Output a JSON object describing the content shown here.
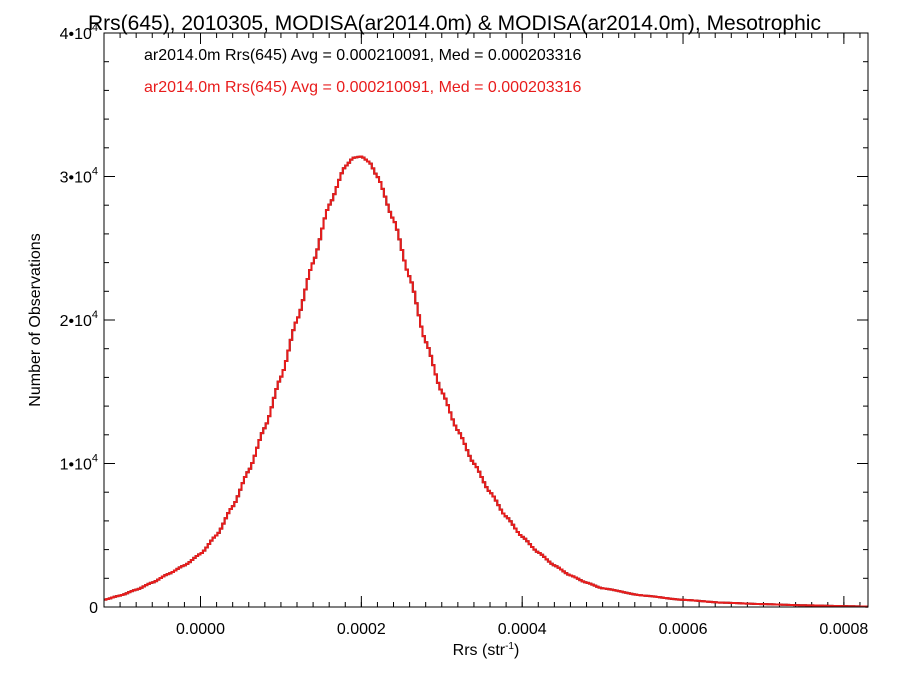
{
  "chart_data": {
    "type": "histogram",
    "title": "Rrs(645), 2010305, MODISA(ar2014.0m) & MODISA(ar2014.0m), Mesotrophic",
    "xlabel": "Rrs (str",
    "xlabel_sup": "-1",
    "xlabel_end": ")",
    "ylabel": "Number of Observations",
    "xlim": [
      -0.00012,
      0.00083
    ],
    "ylim": [
      0,
      40000
    ],
    "x_ticks": [
      0.0,
      0.0002,
      0.0004,
      0.0006,
      0.0008
    ],
    "x_tick_labels": [
      "0.0000",
      "0.0002",
      "0.0004",
      "0.0006",
      "0.0008"
    ],
    "y_ticks": [
      0,
      10000,
      20000,
      30000,
      40000
    ],
    "y_tick_labels": [
      {
        "base": "0",
        "exp": ""
      },
      {
        "base": "1•10",
        "exp": "4"
      },
      {
        "base": "2•10",
        "exp": "4"
      },
      {
        "base": "3•10",
        "exp": "4"
      },
      {
        "base": "4•10",
        "exp": "4"
      }
    ],
    "x_minor_step": 2e-05,
    "y_minor_step": 2000,
    "grid": false,
    "legend_position": "top-left",
    "series": [
      {
        "name": "ar2014.0m Rrs(645) Avg = 0.000210091, Med = 0.000203316",
        "color": "#000000",
        "x": [
          -0.00012,
          -0.0001,
          -8e-05,
          -6e-05,
          -4e-05,
          -2e-05,
          0.0,
          2e-05,
          4e-05,
          6e-05,
          8e-05,
          0.0001,
          0.00012,
          0.00014,
          0.00016,
          0.00018,
          0.00019,
          0.0002,
          0.00021,
          0.00022,
          0.00024,
          0.00026,
          0.00028,
          0.0003,
          0.00032,
          0.00034,
          0.00036,
          0.00038,
          0.0004,
          0.00042,
          0.00044,
          0.00046,
          0.00048,
          0.0005,
          0.00055,
          0.0006,
          0.00065,
          0.0007,
          0.00075,
          0.0008,
          0.00083
        ],
        "y": [
          500,
          800,
          1200,
          1700,
          2300,
          2900,
          3700,
          5000,
          7000,
          9500,
          12500,
          16000,
          20000,
          24000,
          28000,
          30700,
          31300,
          31400,
          31000,
          30000,
          27000,
          23000,
          18500,
          15000,
          12300,
          10000,
          8000,
          6300,
          4900,
          3800,
          2900,
          2200,
          1700,
          1300,
          800,
          500,
          300,
          200,
          120,
          60,
          30
        ]
      },
      {
        "name": "ar2014.0m Rrs(645) Avg = 0.000210091, Med = 0.000203316",
        "color": "#e81c1c",
        "x": [
          -0.00012,
          -0.0001,
          -8e-05,
          -6e-05,
          -4e-05,
          -2e-05,
          0.0,
          2e-05,
          4e-05,
          6e-05,
          8e-05,
          0.0001,
          0.00012,
          0.00014,
          0.00016,
          0.00018,
          0.00019,
          0.0002,
          0.00021,
          0.00022,
          0.00024,
          0.00026,
          0.00028,
          0.0003,
          0.00032,
          0.00034,
          0.00036,
          0.00038,
          0.0004,
          0.00042,
          0.00044,
          0.00046,
          0.00048,
          0.0005,
          0.00055,
          0.0006,
          0.00065,
          0.0007,
          0.00075,
          0.0008,
          0.00083
        ],
        "y": [
          500,
          800,
          1200,
          1700,
          2300,
          2900,
          3700,
          5000,
          7000,
          9500,
          12500,
          16000,
          20000,
          24000,
          28000,
          30700,
          31300,
          31400,
          31000,
          30000,
          27000,
          23000,
          18500,
          15000,
          12300,
          10000,
          8000,
          6300,
          4900,
          3800,
          2900,
          2200,
          1700,
          1300,
          800,
          500,
          300,
          200,
          120,
          60,
          30
        ]
      }
    ]
  }
}
